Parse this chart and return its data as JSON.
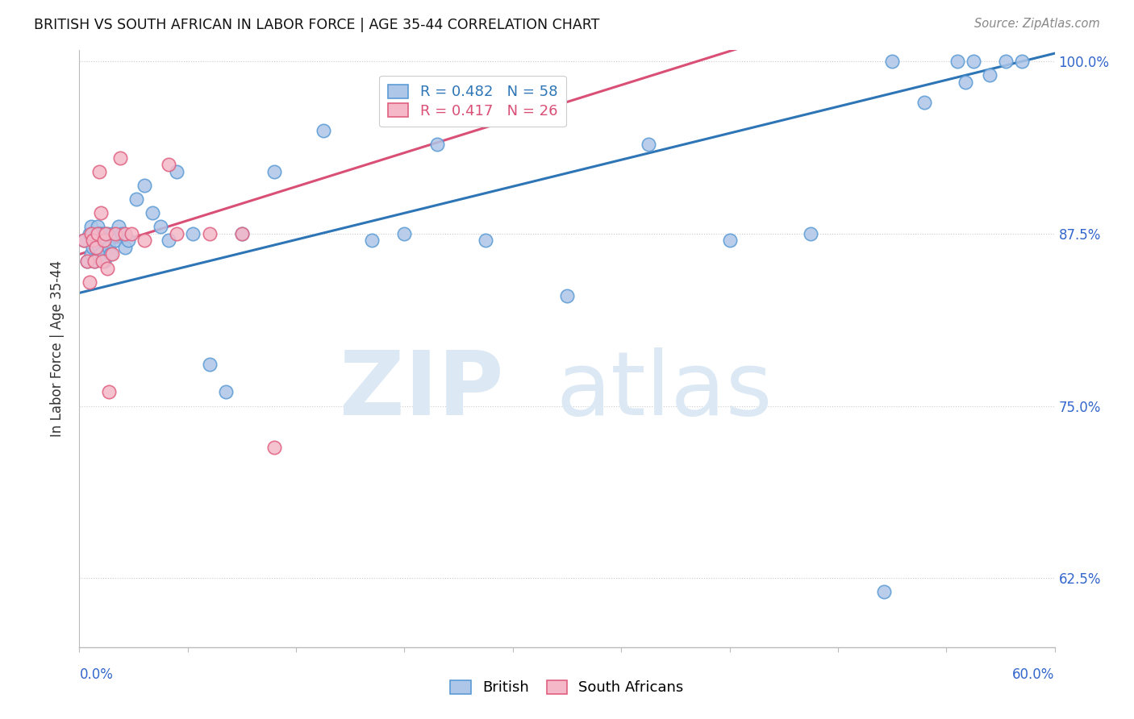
{
  "title": "BRITISH VS SOUTH AFRICAN IN LABOR FORCE | AGE 35-44 CORRELATION CHART",
  "source": "Source: ZipAtlas.com",
  "ylabel": "In Labor Force | Age 35-44",
  "xlim": [
    0.0,
    0.6
  ],
  "ylim": [
    0.575,
    1.008
  ],
  "yticks": [
    0.625,
    0.75,
    0.875,
    1.0
  ],
  "ytick_labels": [
    "62.5%",
    "75.0%",
    "87.5%",
    "100.0%"
  ],
  "legend_blue_label": "R = 0.482   N = 58",
  "legend_pink_label": "R = 0.417   N = 26",
  "blue_color": "#aec6e8",
  "blue_edge_color": "#5b9bd5",
  "blue_line_color": "#2e75b6",
  "pink_color": "#f4b8c8",
  "pink_edge_color": "#e06080",
  "pink_line_color": "#d94f76",
  "watermark_zip_color": "#dce9f5",
  "watermark_atlas_color": "#dce9f5",
  "british_x": [
    0.003,
    0.005,
    0.006,
    0.007,
    0.007,
    0.008,
    0.008,
    0.009,
    0.009,
    0.01,
    0.01,
    0.011,
    0.011,
    0.012,
    0.012,
    0.013,
    0.013,
    0.014,
    0.015,
    0.015,
    0.016,
    0.017,
    0.018,
    0.019,
    0.02,
    0.022,
    0.024,
    0.026,
    0.028,
    0.03,
    0.035,
    0.04,
    0.045,
    0.05,
    0.055,
    0.06,
    0.07,
    0.08,
    0.09,
    0.1,
    0.12,
    0.15,
    0.18,
    0.2,
    0.22,
    0.25,
    0.3,
    0.35,
    0.4,
    0.45,
    0.5,
    0.52,
    0.54,
    0.545,
    0.55,
    0.56,
    0.57,
    0.58
  ],
  "british_y": [
    0.87,
    0.855,
    0.875,
    0.86,
    0.88,
    0.865,
    0.875,
    0.855,
    0.87,
    0.865,
    0.875,
    0.87,
    0.88,
    0.865,
    0.875,
    0.86,
    0.875,
    0.87,
    0.855,
    0.875,
    0.87,
    0.875,
    0.865,
    0.86,
    0.875,
    0.87,
    0.88,
    0.875,
    0.865,
    0.87,
    0.9,
    0.91,
    0.89,
    0.88,
    0.87,
    0.92,
    0.875,
    0.78,
    0.76,
    0.875,
    0.92,
    0.95,
    0.87,
    0.875,
    0.94,
    0.87,
    0.83,
    0.94,
    0.87,
    0.875,
    1.0,
    0.97,
    1.0,
    0.985,
    1.0,
    0.99,
    1.0,
    1.0
  ],
  "sa_x": [
    0.003,
    0.005,
    0.006,
    0.007,
    0.008,
    0.009,
    0.01,
    0.011,
    0.012,
    0.013,
    0.014,
    0.015,
    0.016,
    0.017,
    0.018,
    0.02,
    0.022,
    0.025,
    0.028,
    0.032,
    0.04,
    0.055,
    0.06,
    0.08,
    0.1,
    0.12
  ],
  "sa_y": [
    0.87,
    0.855,
    0.84,
    0.875,
    0.87,
    0.855,
    0.865,
    0.875,
    0.92,
    0.89,
    0.855,
    0.87,
    0.875,
    0.85,
    0.76,
    0.86,
    0.875,
    0.93,
    0.875,
    0.875,
    0.87,
    0.925,
    0.875,
    0.875,
    0.875,
    0.72
  ],
  "blue_trend": [
    0.832,
    1.0
  ],
  "pink_trend": [
    0.86,
    1.0
  ],
  "xtick_count": 10
}
